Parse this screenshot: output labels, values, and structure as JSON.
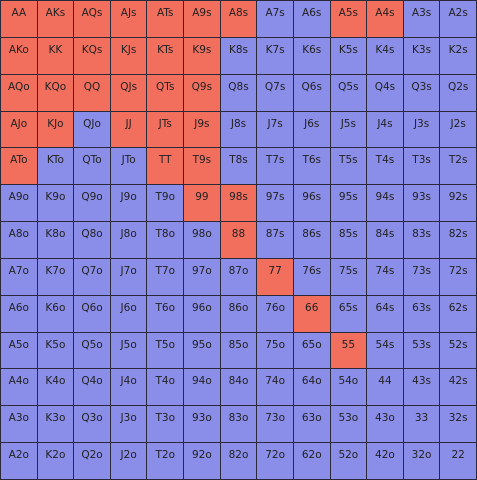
{
  "grid": {
    "rows": [
      [
        {
          "label": "AA",
          "color": "#f26f5e"
        },
        {
          "label": "AKs",
          "color": "#f26f5e"
        },
        {
          "label": "AQs",
          "color": "#f26f5e"
        },
        {
          "label": "AJs",
          "color": "#f26f5e"
        },
        {
          "label": "ATs",
          "color": "#f26f5e"
        },
        {
          "label": "A9s",
          "color": "#f26f5e"
        },
        {
          "label": "A8s",
          "color": "#f26f5e"
        },
        {
          "label": "A7s",
          "color": "#8b8ee8"
        },
        {
          "label": "A6s",
          "color": "#8b8ee8"
        },
        {
          "label": "A5s",
          "color": "#f26f5e"
        },
        {
          "label": "A4s",
          "color": "#f26f5e"
        },
        {
          "label": "A3s",
          "color": "#8b8ee8"
        },
        {
          "label": "A2s",
          "color": "#8b8ee8"
        }
      ],
      [
        {
          "label": "AKo",
          "color": "#f26f5e"
        },
        {
          "label": "KK",
          "color": "#f26f5e"
        },
        {
          "label": "KQs",
          "color": "#f26f5e"
        },
        {
          "label": "KJs",
          "color": "#f26f5e"
        },
        {
          "label": "KTs",
          "color": "#f26f5e"
        },
        {
          "label": "K9s",
          "color": "#f26f5e"
        },
        {
          "label": "K8s",
          "color": "#8b8ee8"
        },
        {
          "label": "K7s",
          "color": "#8b8ee8"
        },
        {
          "label": "K6s",
          "color": "#8b8ee8"
        },
        {
          "label": "K5s",
          "color": "#8b8ee8"
        },
        {
          "label": "K4s",
          "color": "#8b8ee8"
        },
        {
          "label": "K3s",
          "color": "#8b8ee8"
        },
        {
          "label": "K2s",
          "color": "#8b8ee8"
        }
      ],
      [
        {
          "label": "AQo",
          "color": "#f26f5e"
        },
        {
          "label": "KQo",
          "color": "#f26f5e"
        },
        {
          "label": "QQ",
          "color": "#f26f5e"
        },
        {
          "label": "QJs",
          "color": "#f26f5e"
        },
        {
          "label": "QTs",
          "color": "#f26f5e"
        },
        {
          "label": "Q9s",
          "color": "#f26f5e"
        },
        {
          "label": "Q8s",
          "color": "#8b8ee8"
        },
        {
          "label": "Q7s",
          "color": "#8b8ee8"
        },
        {
          "label": "Q6s",
          "color": "#8b8ee8"
        },
        {
          "label": "Q5s",
          "color": "#8b8ee8"
        },
        {
          "label": "Q4s",
          "color": "#8b8ee8"
        },
        {
          "label": "Q3s",
          "color": "#8b8ee8"
        },
        {
          "label": "Q2s",
          "color": "#8b8ee8"
        }
      ],
      [
        {
          "label": "AJo",
          "color": "#f26f5e"
        },
        {
          "label": "KJo",
          "color": "#f26f5e"
        },
        {
          "label": "QJo",
          "color": "#8b8ee8"
        },
        {
          "label": "JJ",
          "color": "#f26f5e"
        },
        {
          "label": "JTs",
          "color": "#f26f5e"
        },
        {
          "label": "J9s",
          "color": "#f26f5e"
        },
        {
          "label": "J8s",
          "color": "#8b8ee8"
        },
        {
          "label": "J7s",
          "color": "#8b8ee8"
        },
        {
          "label": "J6s",
          "color": "#8b8ee8"
        },
        {
          "label": "J5s",
          "color": "#8b8ee8"
        },
        {
          "label": "J4s",
          "color": "#8b8ee8"
        },
        {
          "label": "J3s",
          "color": "#8b8ee8"
        },
        {
          "label": "J2s",
          "color": "#8b8ee8"
        }
      ],
      [
        {
          "label": "ATo",
          "color": "#f26f5e"
        },
        {
          "label": "KTo",
          "color": "#8b8ee8"
        },
        {
          "label": "QTo",
          "color": "#8b8ee8"
        },
        {
          "label": "JTo",
          "color": "#8b8ee8"
        },
        {
          "label": "TT",
          "color": "#f26f5e"
        },
        {
          "label": "T9s",
          "color": "#f26f5e"
        },
        {
          "label": "T8s",
          "color": "#8b8ee8"
        },
        {
          "label": "T7s",
          "color": "#8b8ee8"
        },
        {
          "label": "T6s",
          "color": "#8b8ee8"
        },
        {
          "label": "T5s",
          "color": "#8b8ee8"
        },
        {
          "label": "T4s",
          "color": "#8b8ee8"
        },
        {
          "label": "T3s",
          "color": "#8b8ee8"
        },
        {
          "label": "T2s",
          "color": "#8b8ee8"
        }
      ],
      [
        {
          "label": "A9o",
          "color": "#8b8ee8"
        },
        {
          "label": "K9o",
          "color": "#8b8ee8"
        },
        {
          "label": "Q9o",
          "color": "#8b8ee8"
        },
        {
          "label": "J9o",
          "color": "#8b8ee8"
        },
        {
          "label": "T9o",
          "color": "#8b8ee8"
        },
        {
          "label": "99",
          "color": "#f26f5e"
        },
        {
          "label": "98s",
          "color": "#f26f5e"
        },
        {
          "label": "97s",
          "color": "#8b8ee8"
        },
        {
          "label": "96s",
          "color": "#8b8ee8"
        },
        {
          "label": "95s",
          "color": "#8b8ee8"
        },
        {
          "label": "94s",
          "color": "#8b8ee8"
        },
        {
          "label": "93s",
          "color": "#8b8ee8"
        },
        {
          "label": "92s",
          "color": "#8b8ee8"
        }
      ],
      [
        {
          "label": "A8o",
          "color": "#8b8ee8"
        },
        {
          "label": "K8o",
          "color": "#8b8ee8"
        },
        {
          "label": "Q8o",
          "color": "#8b8ee8"
        },
        {
          "label": "J8o",
          "color": "#8b8ee8"
        },
        {
          "label": "T8o",
          "color": "#8b8ee8"
        },
        {
          "label": "98o",
          "color": "#8b8ee8"
        },
        {
          "label": "88",
          "color": "#f26f5e"
        },
        {
          "label": "87s",
          "color": "#8b8ee8"
        },
        {
          "label": "86s",
          "color": "#8b8ee8"
        },
        {
          "label": "85s",
          "color": "#8b8ee8"
        },
        {
          "label": "84s",
          "color": "#8b8ee8"
        },
        {
          "label": "83s",
          "color": "#8b8ee8"
        },
        {
          "label": "82s",
          "color": "#8b8ee8"
        }
      ],
      [
        {
          "label": "A7o",
          "color": "#8b8ee8"
        },
        {
          "label": "K7o",
          "color": "#8b8ee8"
        },
        {
          "label": "Q7o",
          "color": "#8b8ee8"
        },
        {
          "label": "J7o",
          "color": "#8b8ee8"
        },
        {
          "label": "T7o",
          "color": "#8b8ee8"
        },
        {
          "label": "97o",
          "color": "#8b8ee8"
        },
        {
          "label": "87o",
          "color": "#8b8ee8"
        },
        {
          "label": "77",
          "color": "#f26f5e"
        },
        {
          "label": "76s",
          "color": "#8b8ee8"
        },
        {
          "label": "75s",
          "color": "#8b8ee8"
        },
        {
          "label": "74s",
          "color": "#8b8ee8"
        },
        {
          "label": "73s",
          "color": "#8b8ee8"
        },
        {
          "label": "72s",
          "color": "#8b8ee8"
        }
      ],
      [
        {
          "label": "A6o",
          "color": "#8b8ee8"
        },
        {
          "label": "K6o",
          "color": "#8b8ee8"
        },
        {
          "label": "Q6o",
          "color": "#8b8ee8"
        },
        {
          "label": "J6o",
          "color": "#8b8ee8"
        },
        {
          "label": "T6o",
          "color": "#8b8ee8"
        },
        {
          "label": "96o",
          "color": "#8b8ee8"
        },
        {
          "label": "86o",
          "color": "#8b8ee8"
        },
        {
          "label": "76o",
          "color": "#8b8ee8"
        },
        {
          "label": "66",
          "color": "#f26f5e"
        },
        {
          "label": "65s",
          "color": "#8b8ee8"
        },
        {
          "label": "64s",
          "color": "#8b8ee8"
        },
        {
          "label": "63s",
          "color": "#8b8ee8"
        },
        {
          "label": "62s",
          "color": "#8b8ee8"
        }
      ],
      [
        {
          "label": "A5o",
          "color": "#8b8ee8"
        },
        {
          "label": "K5o",
          "color": "#8b8ee8"
        },
        {
          "label": "Q5o",
          "color": "#8b8ee8"
        },
        {
          "label": "J5o",
          "color": "#8b8ee8"
        },
        {
          "label": "T5o",
          "color": "#8b8ee8"
        },
        {
          "label": "95o",
          "color": "#8b8ee8"
        },
        {
          "label": "85o",
          "color": "#8b8ee8"
        },
        {
          "label": "75o",
          "color": "#8b8ee8"
        },
        {
          "label": "65o",
          "color": "#8b8ee8"
        },
        {
          "label": "55",
          "color": "#f26f5e"
        },
        {
          "label": "54s",
          "color": "#8b8ee8"
        },
        {
          "label": "53s",
          "color": "#8b8ee8"
        },
        {
          "label": "52s",
          "color": "#8b8ee8"
        }
      ],
      [
        {
          "label": "A4o",
          "color": "#8b8ee8"
        },
        {
          "label": "K4o",
          "color": "#8b8ee8"
        },
        {
          "label": "Q4o",
          "color": "#8b8ee8"
        },
        {
          "label": "J4o",
          "color": "#8b8ee8"
        },
        {
          "label": "T4o",
          "color": "#8b8ee8"
        },
        {
          "label": "94o",
          "color": "#8b8ee8"
        },
        {
          "label": "84o",
          "color": "#8b8ee8"
        },
        {
          "label": "74o",
          "color": "#8b8ee8"
        },
        {
          "label": "64o",
          "color": "#8b8ee8"
        },
        {
          "label": "54o",
          "color": "#8b8ee8"
        },
        {
          "label": "44",
          "color": "#8b8ee8"
        },
        {
          "label": "43s",
          "color": "#8b8ee8"
        },
        {
          "label": "42s",
          "color": "#8b8ee8"
        }
      ],
      [
        {
          "label": "A3o",
          "color": "#8b8ee8"
        },
        {
          "label": "K3o",
          "color": "#8b8ee8"
        },
        {
          "label": "Q3o",
          "color": "#8b8ee8"
        },
        {
          "label": "J3o",
          "color": "#8b8ee8"
        },
        {
          "label": "T3o",
          "color": "#8b8ee8"
        },
        {
          "label": "93o",
          "color": "#8b8ee8"
        },
        {
          "label": "83o",
          "color": "#8b8ee8"
        },
        {
          "label": "73o",
          "color": "#8b8ee8"
        },
        {
          "label": "63o",
          "color": "#8b8ee8"
        },
        {
          "label": "53o",
          "color": "#8b8ee8"
        },
        {
          "label": "43o",
          "color": "#8b8ee8"
        },
        {
          "label": "33",
          "color": "#8b8ee8"
        },
        {
          "label": "32s",
          "color": "#8b8ee8"
        }
      ],
      [
        {
          "label": "A2o",
          "color": "#8b8ee8"
        },
        {
          "label": "K2o",
          "color": "#8b8ee8"
        },
        {
          "label": "Q2o",
          "color": "#8b8ee8"
        },
        {
          "label": "J2o",
          "color": "#8b8ee8"
        },
        {
          "label": "T2o",
          "color": "#8b8ee8"
        },
        {
          "label": "92o",
          "color": "#8b8ee8"
        },
        {
          "label": "82o",
          "color": "#8b8ee8"
        },
        {
          "label": "72o",
          "color": "#8b8ee8"
        },
        {
          "label": "62o",
          "color": "#8b8ee8"
        },
        {
          "label": "52o",
          "color": "#8b8ee8"
        },
        {
          "label": "42o",
          "color": "#8b8ee8"
        },
        {
          "label": "32o",
          "color": "#8b8ee8"
        },
        {
          "label": "22",
          "color": "#8b8ee8"
        }
      ]
    ]
  }
}
